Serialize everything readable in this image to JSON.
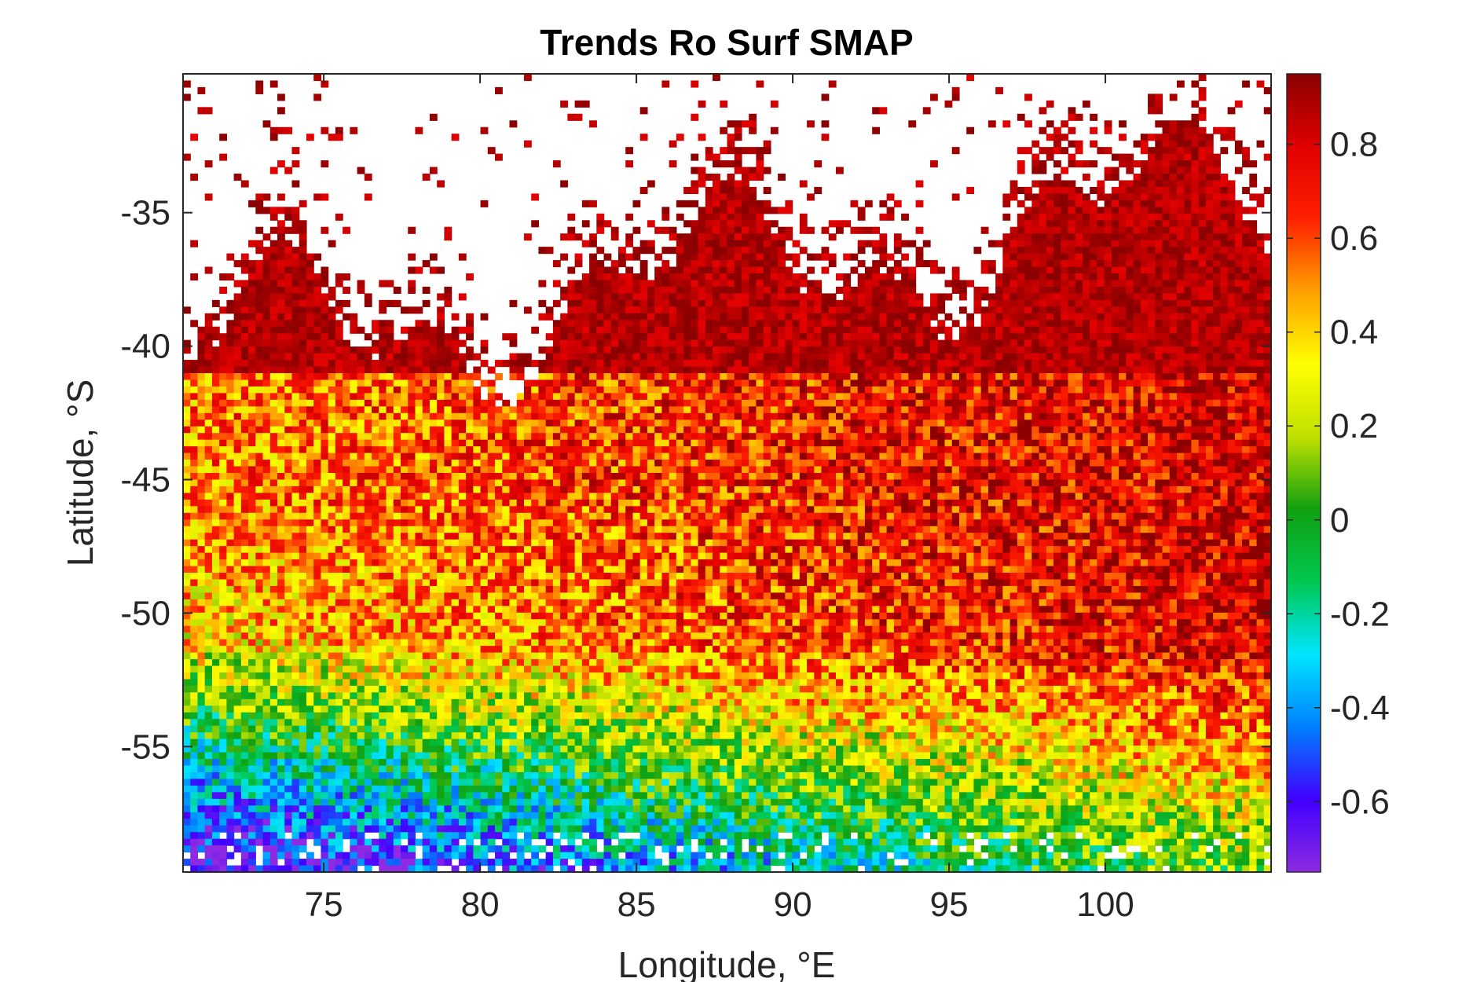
{
  "chart_data": {
    "type": "heatmap",
    "title": "Trends Ro Surf SMAP",
    "xlabel": "Longitude, °E",
    "ylabel": "Latitude, °S",
    "xlim": [
      70.5,
      105.3
    ],
    "ylim": [
      -59.7,
      -29.8
    ],
    "xticks": [
      75,
      80,
      85,
      90,
      95,
      100
    ],
    "xtick_labels": [
      "75",
      "80",
      "85",
      "90",
      "95",
      "100"
    ],
    "yticks": [
      -35,
      -40,
      -45,
      -50,
      -55
    ],
    "ytick_labels": [
      "-35",
      "-40",
      "-45",
      "-50",
      "-55"
    ],
    "colorbar": {
      "range": [
        -0.75,
        0.95
      ],
      "ticks": [
        0.8,
        0.6,
        0.4,
        0.2,
        0,
        -0.2,
        -0.4,
        -0.6
      ],
      "tick_labels": [
        "0.8",
        "0.6",
        "0.4",
        "0.2",
        "0",
        "-0.2",
        "-0.4",
        "-0.6"
      ],
      "colormap": [
        "#8e2be2",
        "#4000ff",
        "#0080ff",
        "#00e5ff",
        "#00c850",
        "#10a010",
        "#c0e000",
        "#ffff00",
        "#ffa000",
        "#ff2000",
        "#e00000",
        "#8b0000"
      ]
    },
    "grid": false,
    "legend": "none",
    "regions": {
      "missing_data": "white patches, mostly north of -40",
      "north": "strongly positive (~0.8 to 0.95)",
      "middle": "mixed positive (~0.2 to 0.7)",
      "south": "negative (~-0.7 to 0) near -55 to -59.7"
    }
  }
}
